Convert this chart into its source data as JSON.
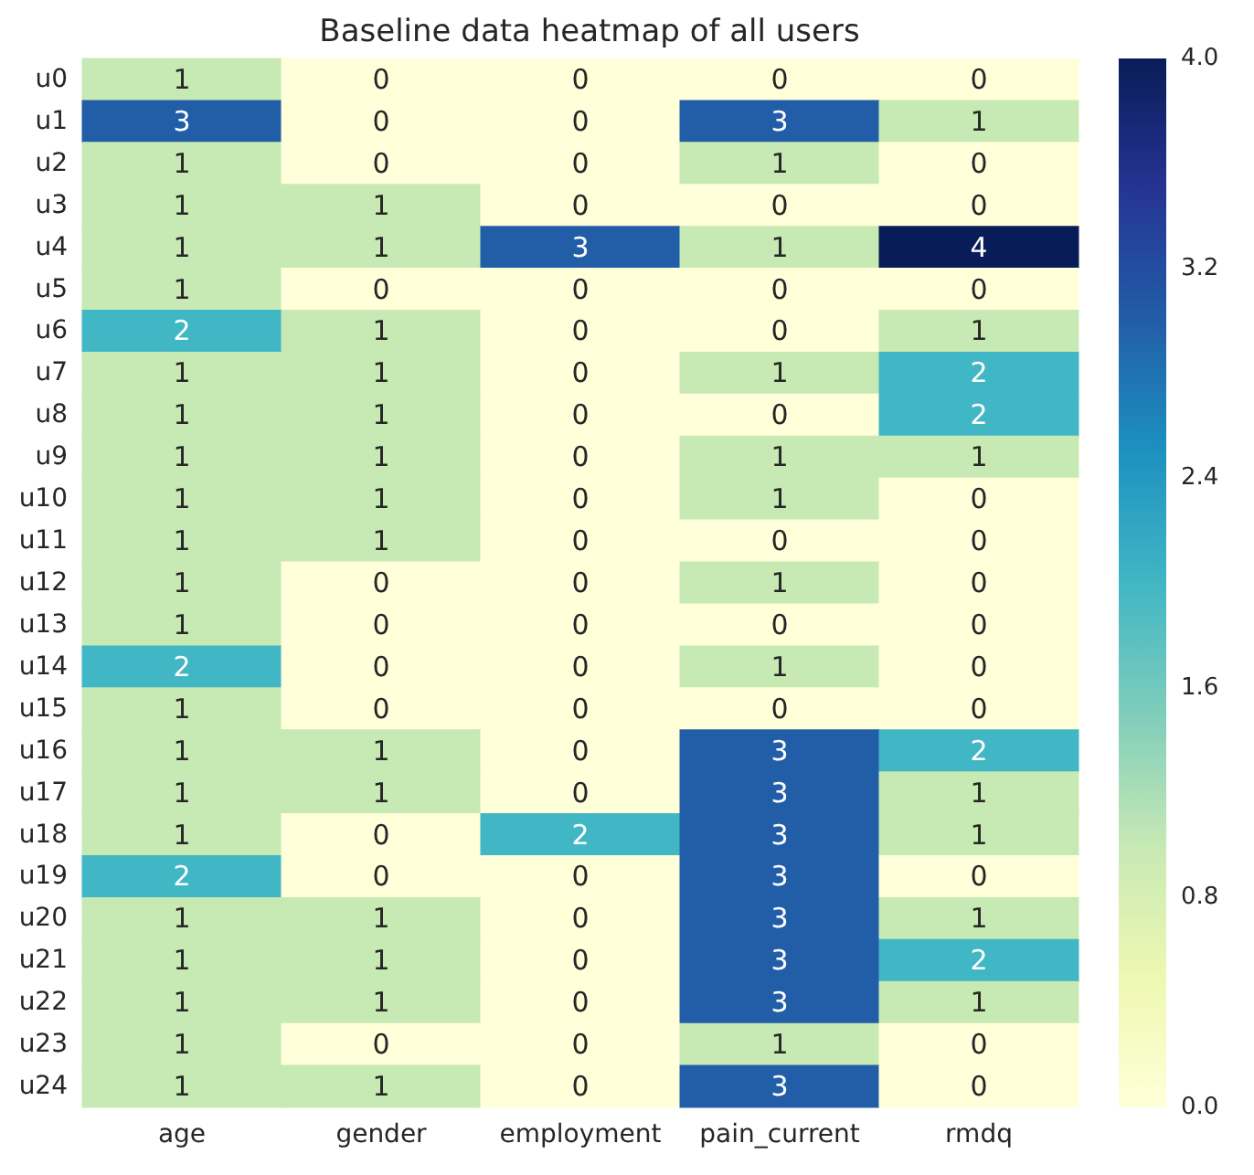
{
  "chart_data": {
    "type": "heatmap",
    "title": "Baseline data heatmap of all users",
    "categories": [
      "age",
      "gender",
      "employment",
      "pain_current",
      "rmdq"
    ],
    "y_categories": [
      "u0",
      "u1",
      "u2",
      "u3",
      "u4",
      "u5",
      "u6",
      "u7",
      "u8",
      "u9",
      "u10",
      "u11",
      "u12",
      "u13",
      "u14",
      "u15",
      "u16",
      "u17",
      "u18",
      "u19",
      "u20",
      "u21",
      "u22",
      "u23",
      "u24"
    ],
    "cells": [
      [
        1,
        0,
        0,
        0,
        0
      ],
      [
        3,
        0,
        0,
        3,
        1
      ],
      [
        1,
        0,
        0,
        1,
        0
      ],
      [
        1,
        1,
        0,
        0,
        0
      ],
      [
        1,
        1,
        3,
        1,
        4
      ],
      [
        1,
        0,
        0,
        0,
        0
      ],
      [
        2,
        1,
        0,
        0,
        1
      ],
      [
        1,
        1,
        0,
        1,
        2
      ],
      [
        1,
        1,
        0,
        0,
        2
      ],
      [
        1,
        1,
        0,
        1,
        1
      ],
      [
        1,
        1,
        0,
        1,
        0
      ],
      [
        1,
        1,
        0,
        0,
        0
      ],
      [
        1,
        0,
        0,
        1,
        0
      ],
      [
        1,
        0,
        0,
        0,
        0
      ],
      [
        2,
        0,
        0,
        1,
        0
      ],
      [
        1,
        0,
        0,
        0,
        0
      ],
      [
        1,
        1,
        0,
        3,
        2
      ],
      [
        1,
        1,
        0,
        3,
        1
      ],
      [
        1,
        0,
        2,
        3,
        1
      ],
      [
        2,
        0,
        0,
        3,
        0
      ],
      [
        1,
        1,
        0,
        3,
        1
      ],
      [
        1,
        1,
        0,
        3,
        2
      ],
      [
        1,
        1,
        0,
        3,
        1
      ],
      [
        1,
        0,
        0,
        1,
        0
      ],
      [
        1,
        1,
        0,
        3,
        0
      ]
    ],
    "clim": [
      0,
      4
    ],
    "cticks": [
      {
        "value": 0,
        "label": "0.0"
      },
      {
        "value": 0.8,
        "label": "0.8"
      },
      {
        "value": 1.6,
        "label": "1.6"
      },
      {
        "value": 2.4,
        "label": "2.4"
      },
      {
        "value": 3.2,
        "label": "3.2"
      },
      {
        "value": 4,
        "label": "4.0"
      }
    ],
    "data_labels": true
  }
}
